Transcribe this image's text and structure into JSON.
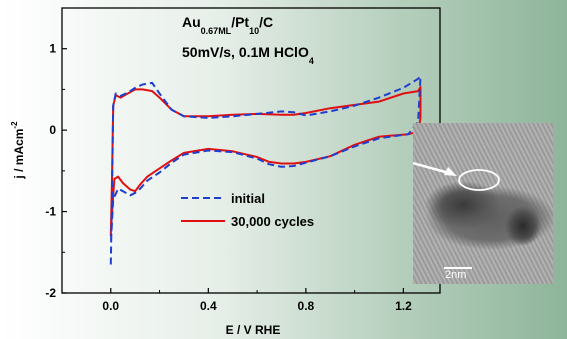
{
  "chart_data": {
    "type": "line",
    "title_line1": {
      "main": "Au",
      "sub1": "0.67ML",
      "mid": "/Pt",
      "sub2": "10",
      "end": "/C"
    },
    "title_line2": {
      "main": "50mV/s, 0.1M HClO",
      "sub": "4"
    },
    "xlabel": "E / V RHE",
    "ylabel": "j / mAcm",
    "ylabel_sup": "-2",
    "xlim": [
      -0.2,
      1.35
    ],
    "ylim": [
      -2,
      1.5
    ],
    "xticks": [
      "0.0",
      "0.4",
      "0.8",
      "1.2"
    ],
    "yticks": [
      "-2",
      "-1",
      "0",
      "1"
    ],
    "grid": false,
    "legend_position": "center",
    "series": [
      {
        "name": "initial",
        "color": "#1e3fd0",
        "dash": "dashed",
        "x": [
          0.0,
          0.005,
          0.01,
          0.02,
          0.04,
          0.07,
          0.1,
          0.13,
          0.17,
          0.2,
          0.25,
          0.3,
          0.4,
          0.5,
          0.6,
          0.7,
          0.75,
          0.8,
          0.9,
          1.0,
          1.1,
          1.2,
          1.26,
          1.27,
          1.26,
          1.22,
          1.1,
          1.0,
          0.9,
          0.8,
          0.75,
          0.7,
          0.65,
          0.6,
          0.5,
          0.4,
          0.3,
          0.25,
          0.2,
          0.15,
          0.12,
          0.1,
          0.08,
          0.05,
          0.03,
          0.01,
          0.0
        ],
        "y": [
          -1.65,
          -0.8,
          0.3,
          0.45,
          0.42,
          0.46,
          0.52,
          0.56,
          0.58,
          0.45,
          0.25,
          0.17,
          0.15,
          0.17,
          0.2,
          0.23,
          0.22,
          0.18,
          0.23,
          0.3,
          0.4,
          0.52,
          0.63,
          0.66,
          0.1,
          -0.05,
          -0.1,
          -0.2,
          -0.32,
          -0.4,
          -0.44,
          -0.45,
          -0.42,
          -0.35,
          -0.27,
          -0.25,
          -0.3,
          -0.4,
          -0.52,
          -0.62,
          -0.72,
          -0.77,
          -0.8,
          -0.75,
          -0.72,
          -0.85,
          -1.4
        ]
      },
      {
        "name": "30,000 cycles",
        "color": "#e01010",
        "dash": "solid",
        "x": [
          0.0,
          0.005,
          0.01,
          0.02,
          0.04,
          0.07,
          0.1,
          0.13,
          0.17,
          0.2,
          0.25,
          0.3,
          0.4,
          0.5,
          0.6,
          0.7,
          0.75,
          0.8,
          0.9,
          1.0,
          1.1,
          1.2,
          1.26,
          1.27,
          1.27,
          1.26,
          1.22,
          1.1,
          1.0,
          0.9,
          0.8,
          0.75,
          0.7,
          0.65,
          0.6,
          0.5,
          0.4,
          0.3,
          0.25,
          0.2,
          0.15,
          0.12,
          0.1,
          0.08,
          0.05,
          0.03,
          0.015,
          0.01,
          0.0
        ],
        "y": [
          -1.3,
          -0.6,
          0.3,
          0.43,
          0.4,
          0.45,
          0.5,
          0.5,
          0.48,
          0.4,
          0.25,
          0.17,
          0.17,
          0.19,
          0.2,
          0.19,
          0.19,
          0.21,
          0.27,
          0.31,
          0.35,
          0.45,
          0.48,
          0.53,
          0.15,
          -0.02,
          -0.05,
          -0.08,
          -0.18,
          -0.32,
          -0.39,
          -0.41,
          -0.41,
          -0.39,
          -0.33,
          -0.26,
          -0.23,
          -0.28,
          -0.37,
          -0.47,
          -0.57,
          -0.67,
          -0.75,
          -0.73,
          -0.65,
          -0.57,
          -0.6,
          -0.8,
          -1.25
        ]
      }
    ]
  },
  "inset": {
    "scale_label": "2nm"
  }
}
